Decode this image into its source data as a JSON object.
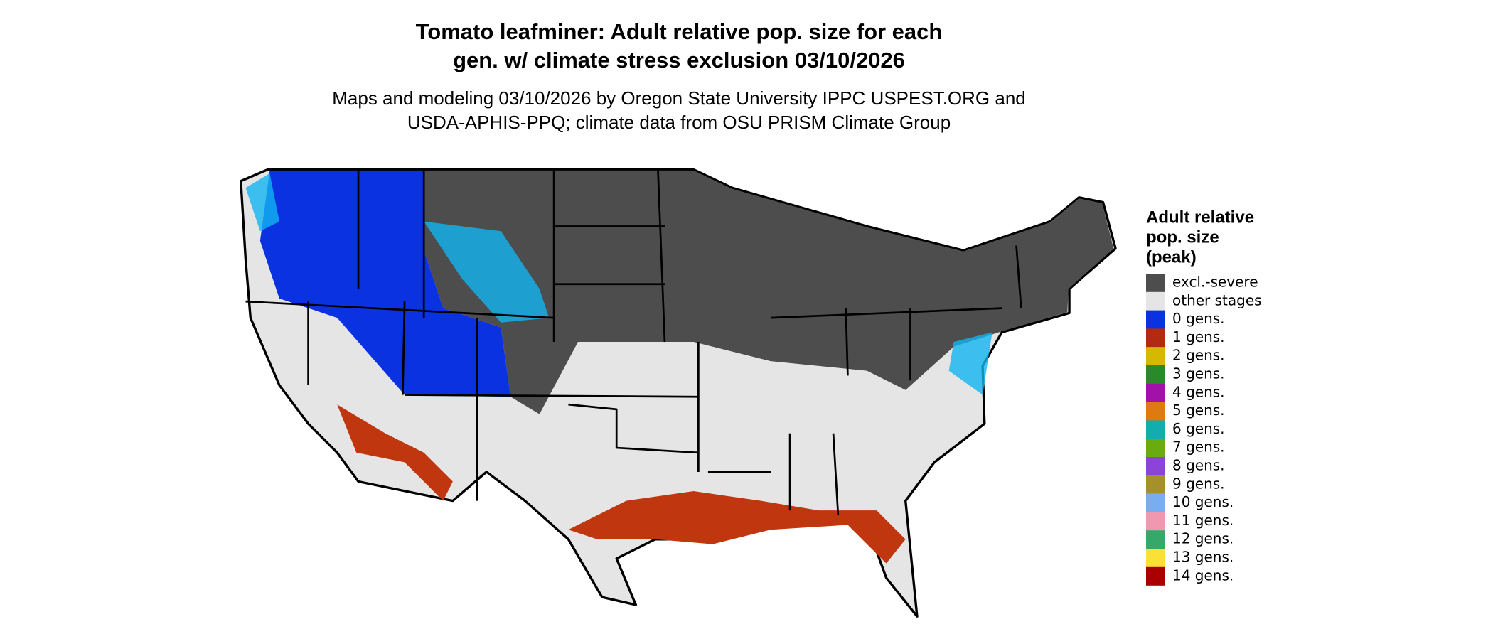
{
  "title": "Tomato leafminer: Adult relative pop. size for each gen. w/ climate stress exclusion 03/10/2026",
  "subtitle_lines": [
    "Maps and modeling 03/10/2026 by Oregon State University IPPC USPEST.ORG and",
    "USDA-APHIS-PPQ; climate data from OSU PRISM Climate Group"
  ],
  "legend": {
    "title_lines": [
      "Adult relative",
      "pop. size",
      "(peak)"
    ],
    "items": [
      {
        "label": "excl.-severe",
        "color": "#4d4d4d"
      },
      {
        "label": "other stages",
        "color": "#e5e5e5"
      },
      {
        "label": "0 gens.",
        "color": "#0a32e0"
      },
      {
        "label": "1 gens.",
        "color": "#b22a12"
      },
      {
        "label": "2 gens.",
        "color": "#d6b800"
      },
      {
        "label": "3 gens.",
        "color": "#2a8a2a"
      },
      {
        "label": "4 gens.",
        "color": "#a312a8"
      },
      {
        "label": "5 gens.",
        "color": "#de7a12"
      },
      {
        "label": "6 gens.",
        "color": "#12adad"
      },
      {
        "label": "7 gens.",
        "color": "#6aab12"
      },
      {
        "label": "8 gens.",
        "color": "#8a44d6"
      },
      {
        "label": "9 gens.",
        "color": "#a6902a"
      },
      {
        "label": "10 gens.",
        "color": "#78aef0"
      },
      {
        "label": "11 gens.",
        "color": "#ef98b0"
      },
      {
        "label": "12 gens.",
        "color": "#35a86a"
      },
      {
        "label": "13 gens.",
        "color": "#fce035"
      },
      {
        "label": "14 gens.",
        "color": "#aa0000"
      }
    ]
  }
}
